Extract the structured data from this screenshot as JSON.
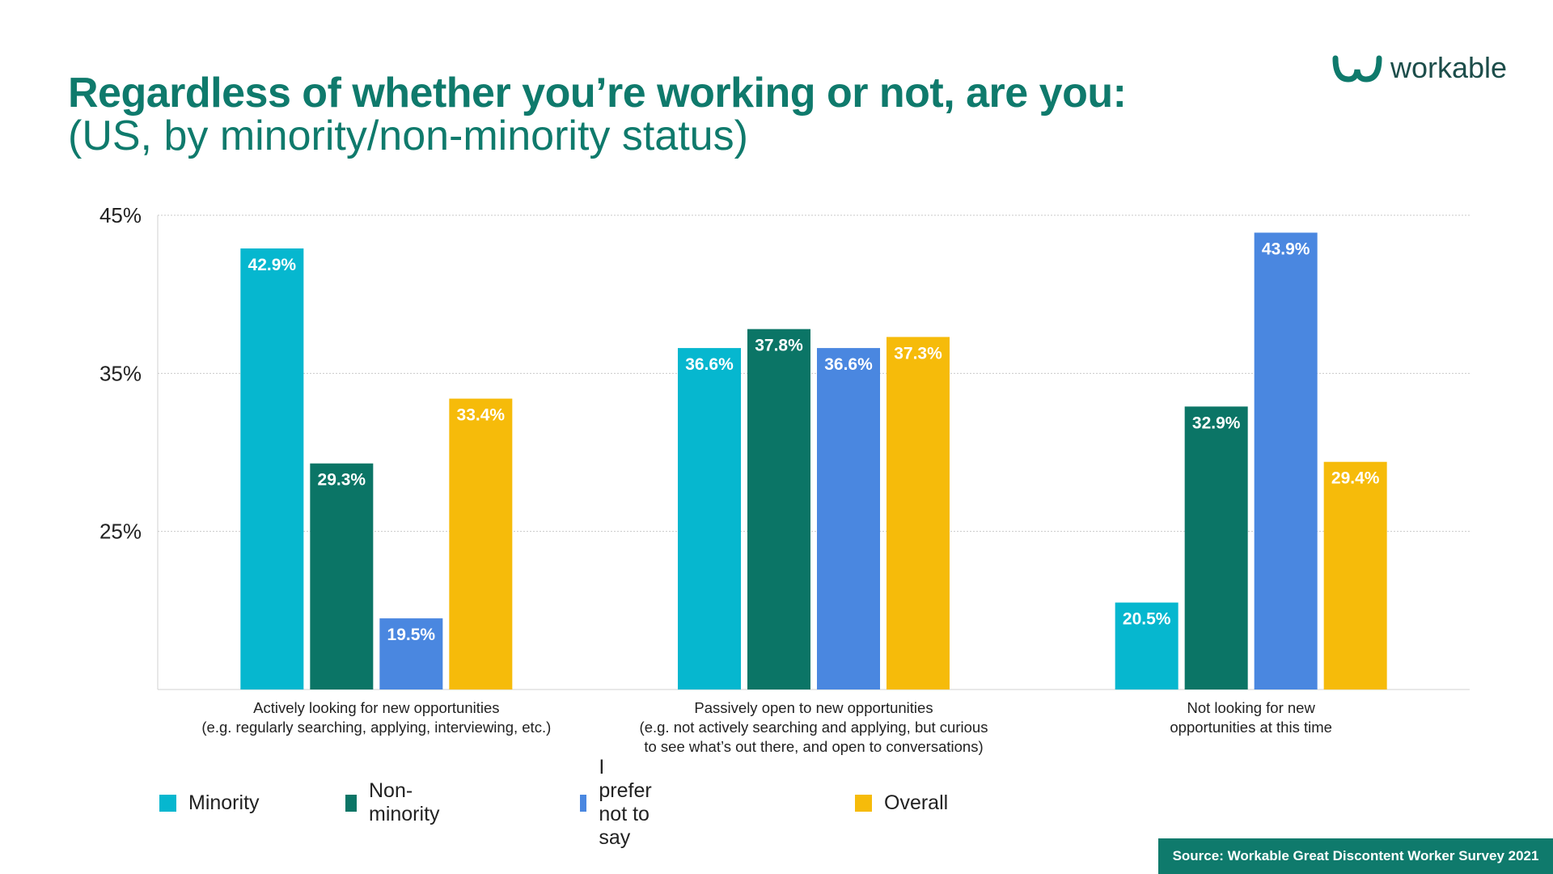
{
  "header": {
    "title": "Regardless of whether you’re working or not, are you:",
    "subtitle": "(US, by minority/non-minority status)"
  },
  "logo": {
    "text": "workable",
    "icon": "workable-logo-icon",
    "color": "#0f7a6c"
  },
  "chart_data": {
    "type": "bar",
    "title": "Regardless of whether you’re working or not, are you:",
    "subtitle": "(US, by minority/non-minority status)",
    "categories": [
      [
        "Actively looking for new opportunities",
        "(e.g. regularly searching, applying, interviewing, etc.)"
      ],
      [
        "Passively open to new opportunities",
        "(e.g. not actively searching and applying, but curious",
        "to see what’s out there, and open to conversations)"
      ],
      [
        "Not looking for new",
        "opportunities at this time"
      ]
    ],
    "series": [
      {
        "name": "Minority",
        "color": "#06b7cf",
        "values": [
          42.9,
          36.6,
          20.5
        ],
        "labels": [
          "42.9%",
          "36.6%",
          "20.5%"
        ]
      },
      {
        "name": "Non-minority",
        "color": "#0b7566",
        "values": [
          29.3,
          37.8,
          32.9
        ],
        "labels": [
          "29.3%",
          "37.8%",
          "32.9%"
        ]
      },
      {
        "name": "I prefer not to say",
        "color": "#4a87e0",
        "values": [
          19.5,
          36.6,
          43.9
        ],
        "labels": [
          "19.5%",
          "36.6%",
          "43.9%"
        ]
      },
      {
        "name": "Overall",
        "color": "#f6bb0a",
        "values": [
          33.4,
          37.3,
          29.4
        ],
        "labels": [
          "33.4%",
          "37.3%",
          "29.4%"
        ]
      }
    ],
    "yticks": [
      25,
      35,
      45
    ],
    "ytick_labels": [
      "25%",
      "35%",
      "45%"
    ],
    "ylim": [
      15,
      45
    ],
    "grid": true,
    "legend": "bottom-left"
  },
  "footer": {
    "source": "Source: Workable Great Discontent Worker Survey 2021"
  }
}
